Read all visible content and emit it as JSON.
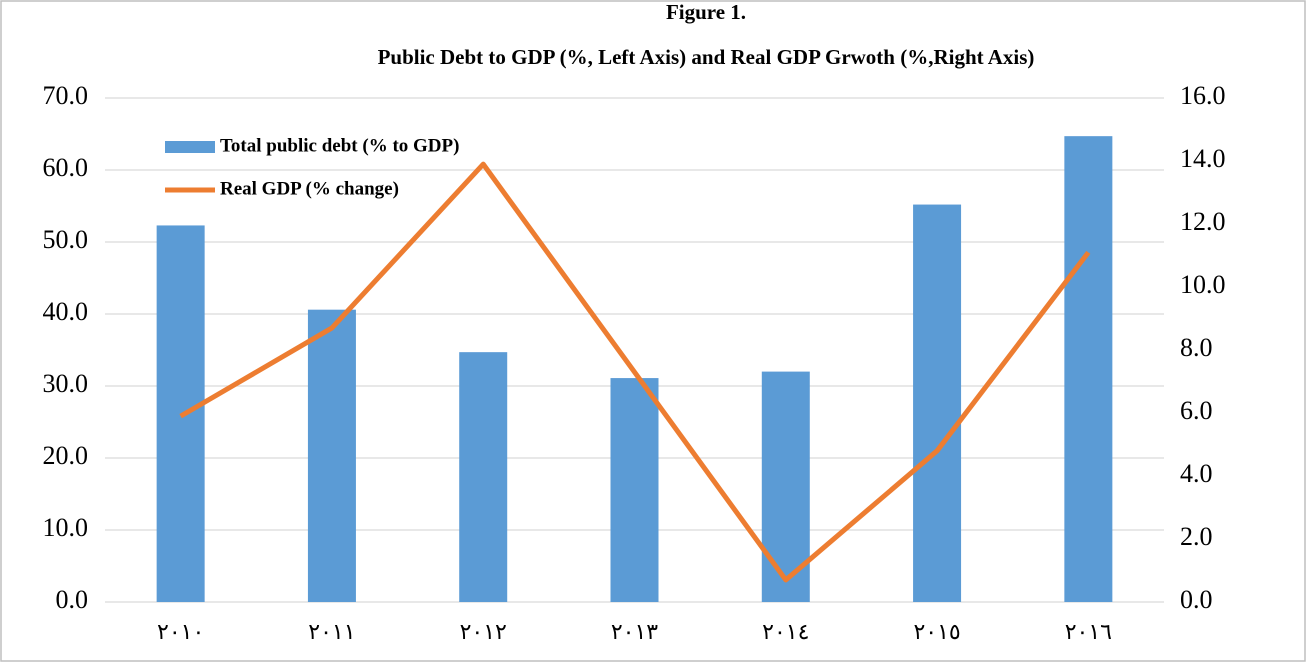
{
  "chart_data": {
    "type": "combo",
    "title": "Figure 1.",
    "subtitle": "Public Debt to GDP  (%, Left Axis) and Real GDP Grwoth (%,Right Axis)",
    "categories": [
      "٢٠١٠",
      "٢٠١١",
      "٢٠١٢",
      "٢٠١٣",
      "٢٠١٤",
      "٢٠١٥",
      "٢٠١٦"
    ],
    "series": [
      {
        "name": "Total public debt (% to GDP)",
        "type": "bar",
        "color": "#5b9bd5",
        "axis": "y",
        "values": [
          52.3,
          40.6,
          34.7,
          31.1,
          32.0,
          55.2,
          64.7
        ]
      },
      {
        "name": "Real GDP (% change)",
        "type": "line",
        "color": "#ed7d31",
        "axis": "y2",
        "values": [
          5.9,
          8.7,
          13.9,
          7.3,
          0.7,
          4.8,
          11.1
        ]
      }
    ],
    "ylim": [
      0,
      70
    ],
    "yticks": [
      {
        "value": 0,
        "label": "0.0"
      },
      {
        "value": 10,
        "label": "10.0"
      },
      {
        "value": 20,
        "label": "20.0"
      },
      {
        "value": 30,
        "label": "30.0"
      },
      {
        "value": 40,
        "label": "40.0"
      },
      {
        "value": 50,
        "label": "50.0"
      },
      {
        "value": 60,
        "label": "60.0"
      },
      {
        "value": 70,
        "label": "70.0"
      }
    ],
    "y2lim": [
      0,
      16
    ],
    "y2ticks": [
      {
        "value": 0,
        "label": "0.0"
      },
      {
        "value": 2,
        "label": "2.0"
      },
      {
        "value": 4,
        "label": "4.0"
      },
      {
        "value": 6,
        "label": "6.0"
      },
      {
        "value": 8,
        "label": "8.0"
      },
      {
        "value": 10,
        "label": "10.0"
      },
      {
        "value": 12,
        "label": "12.0"
      },
      {
        "value": 14,
        "label": "14.0"
      },
      {
        "value": 16,
        "label": "16.0"
      }
    ],
    "grid": true,
    "legend": "top-left"
  }
}
